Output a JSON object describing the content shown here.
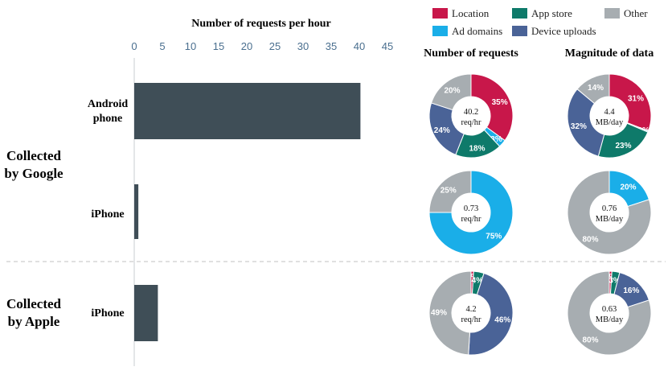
{
  "colors": {
    "location": "#C8174A",
    "app_store": "#0E7A6A",
    "other": "#A7ADB1",
    "ad_domains": "#1AAEE8",
    "device_uploads": "#4A6397",
    "bar": "#3F4E57",
    "axis_text": "#4A6F8F"
  },
  "legend": [
    {
      "key": "location",
      "label": "Location"
    },
    {
      "key": "app_store",
      "label": "App store"
    },
    {
      "key": "other",
      "label": "Other"
    },
    {
      "key": "ad_domains",
      "label": "Ad domains"
    },
    {
      "key": "device_uploads",
      "label": "Device uploads"
    }
  ],
  "chart_data": [
    {
      "type": "bar",
      "orientation": "horizontal",
      "title": "Number of requests per hour",
      "xlim": [
        0,
        45
      ],
      "xticks": [
        0,
        5,
        10,
        15,
        20,
        25,
        30,
        35,
        40,
        45
      ],
      "groups": [
        {
          "label_lines": [
            "Collected",
            "by Google"
          ],
          "rows": [
            {
              "label_lines": [
                "Android",
                "phone"
              ],
              "value": 40.2
            },
            {
              "label_lines": [
                "iPhone"
              ],
              "value": 0.73
            }
          ]
        },
        {
          "label_lines": [
            "Collected",
            "by Apple"
          ],
          "rows": [
            {
              "label_lines": [
                "iPhone"
              ],
              "value": 4.2
            }
          ]
        }
      ]
    },
    {
      "type": "pie",
      "title": "Number of requests",
      "donuts": [
        {
          "center_lines": [
            "40.2",
            "req/hr"
          ],
          "slices": [
            {
              "key": "location",
              "value": 35,
              "label": "35%"
            },
            {
              "key": "ad_domains",
              "value": 3,
              "label": "3%"
            },
            {
              "key": "app_store",
              "value": 18,
              "label": "18%"
            },
            {
              "key": "device_uploads",
              "value": 24,
              "label": "24%"
            },
            {
              "key": "other",
              "value": 20,
              "label": "20%"
            }
          ]
        },
        {
          "center_lines": [
            "0.73",
            "req/hr"
          ],
          "slices": [
            {
              "key": "ad_domains",
              "value": 75,
              "label": "75%"
            },
            {
              "key": "other",
              "value": 25,
              "label": "25%"
            }
          ]
        },
        {
          "center_lines": [
            "4.2",
            "req/hr"
          ],
          "slices": [
            {
              "key": "location",
              "value": 1,
              "label": "1%"
            },
            {
              "key": "app_store",
              "value": 4,
              "label": "4%"
            },
            {
              "key": "device_uploads",
              "value": 46,
              "label": "46%"
            },
            {
              "key": "other",
              "value": 49,
              "label": "49%"
            }
          ]
        }
      ]
    },
    {
      "type": "pie",
      "title": "Magnitude of data",
      "donuts": [
        {
          "center_lines": [
            "4.4",
            "MB/day"
          ],
          "slices": [
            {
              "key": "location",
              "value": 31,
              "label": "31%"
            },
            {
              "key": "ad_domains",
              "value": 0.5,
              "label": "0%"
            },
            {
              "key": "app_store",
              "value": 23,
              "label": "23%"
            },
            {
              "key": "device_uploads",
              "value": 32,
              "label": "32%"
            },
            {
              "key": "other",
              "value": 14,
              "label": "14%"
            }
          ]
        },
        {
          "center_lines": [
            "0.76",
            "MB/day"
          ],
          "slices": [
            {
              "key": "ad_domains",
              "value": 20,
              "label": "20%"
            },
            {
              "key": "other",
              "value": 80,
              "label": "80%"
            }
          ]
        },
        {
          "center_lines": [
            "0.63",
            "MB/day"
          ],
          "slices": [
            {
              "key": "location",
              "value": 1,
              "label": "1%"
            },
            {
              "key": "app_store",
              "value": 3,
              "label": "3%"
            },
            {
              "key": "device_uploads",
              "value": 16,
              "label": "16%"
            },
            {
              "key": "other",
              "value": 80,
              "label": "80%"
            }
          ]
        }
      ]
    }
  ]
}
